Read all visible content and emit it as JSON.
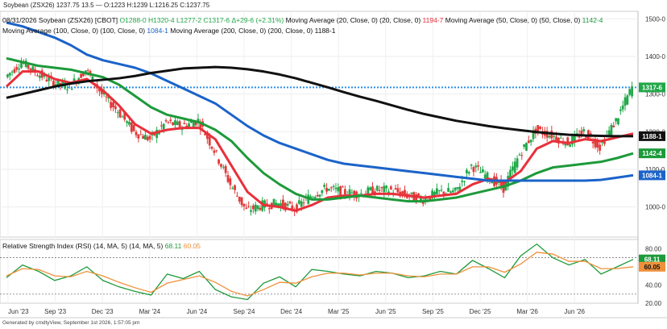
{
  "window_title": "Soybean (ZSX26) 1237.75 13.5 — O:1223 H:1239 L:1216.25 C:1237.75",
  "footer": "Generated by cmdtyView, September 1st 2026, 1:57:05 pm",
  "colors": {
    "candle_up": "#22a84a",
    "candle_down": "#e23a3a",
    "ma20": "#e8303a",
    "ma50": "#1d9a3a",
    "ma100": "#1b63c9",
    "ma200": "#111111",
    "price_line": "#2a8fe8",
    "rsi": "#1d9a3a",
    "rsi_ma": "#f0903a",
    "rsi_extreme": "#2244dd"
  },
  "legend": {
    "line1": [
      {
        "text": "08/31/2026 Soybean (ZSX26) [CBOT]",
        "color": "#111111"
      },
      {
        "text": " O1288-0",
        "color": "#22a84a"
      },
      {
        "text": " H1320-4",
        "color": "#22a84a"
      },
      {
        "text": " L1277-2",
        "color": "#22a84a"
      },
      {
        "text": " C1317-6",
        "color": "#22a84a"
      },
      {
        "text": " Δ+29-6 (+2.31%)",
        "color": "#22a84a"
      },
      {
        "text": " Moving Average (20, Close, 0) (20, Close, 0)",
        "color": "#111111"
      },
      {
        "text": " 1194-7",
        "color": "#e8303a"
      },
      {
        "text": " Moving Average (50, Close, 0) (50, Close, 0)",
        "color": "#111111"
      },
      {
        "text": " 1142-4",
        "color": "#1d9a3a"
      }
    ],
    "line2": [
      {
        "text": "Moving Average (100, Close, 0) (100, Close, 0)",
        "color": "#111111"
      },
      {
        "text": " 1084-1",
        "color": "#1b63c9"
      },
      {
        "text": " Moving Average (200, Close, 0) (200, Close, 0)",
        "color": "#111111"
      },
      {
        "text": " 1188-1",
        "color": "#111111"
      }
    ]
  },
  "rsi_legend": [
    {
      "text": "Relative Strength Index (RSI) (14, MA, 5) (14, MA, 5)",
      "color": "#111111"
    },
    {
      "text": " 68.11",
      "color": "#1d9a3a"
    },
    {
      "text": " 60.05",
      "color": "#f0903a"
    }
  ],
  "price_axis": {
    "ticks": [
      "1500-0",
      "1400-0",
      "1300-0",
      "1200-0",
      "1100-0",
      "1000-0"
    ]
  },
  "rsi_axis": {
    "ticks": [
      "80.00",
      "40.00",
      "20.00"
    ]
  },
  "price_badges": [
    {
      "text": "1317-6",
      "value": 1317.75,
      "color": "#22a84a"
    },
    {
      "text": "1188-1",
      "value": 1188.125,
      "color": "#111111"
    },
    {
      "text": "1142-4",
      "value": 1142.5,
      "color": "#1d9a3a"
    },
    {
      "text": "1084-1",
      "value": 1084.125,
      "color": "#1b63c9"
    }
  ],
  "rsi_badges": [
    {
      "text": "68.11",
      "value": 68.11,
      "color": "#1d9a3a",
      "text_color": "#ffffff"
    },
    {
      "text": "60.05",
      "value": 60.05,
      "color": "#f0903a",
      "text_color": "#111111"
    }
  ],
  "x_labels": [
    "Jun '23",
    "Sep '23",
    "Dec '23",
    "Mar '24",
    "Jun '24",
    "Sep '24",
    "Dec '24",
    "Mar '25",
    "Jun '25",
    "Sep '25",
    "Dec '25",
    "Mar '26",
    "Jun '26"
  ],
  "chart_data": [
    {
      "type": "line",
      "title": "08/31/2026 Soybean (ZSX26) [CBOT]",
      "xlabel": "",
      "ylabel": "",
      "ylim": [
        920,
        1520
      ],
      "x": [
        "Jun '23",
        "Jul '23",
        "Aug '23",
        "Sep '23",
        "Oct '23",
        "Nov '23",
        "Dec '23",
        "Jan '24",
        "Feb '24",
        "Mar '24",
        "Apr '24",
        "May '24",
        "Jun '24",
        "Jul '24",
        "Aug '24",
        "Sep '24",
        "Oct '24",
        "Nov '24",
        "Dec '24",
        "Jan '25",
        "Feb '25",
        "Mar '25",
        "Apr '25",
        "May '25",
        "Jun '25",
        "Jul '25",
        "Aug '25",
        "Sep '25",
        "Oct '25",
        "Nov '25",
        "Dec '25",
        "Jan '26",
        "Feb '26",
        "Mar '26",
        "Apr '26",
        "May '26",
        "Jun '26",
        "Jul '26",
        "Aug '26",
        "Aug 31 '26"
      ],
      "close_reference": 1317.75,
      "series": [
        {
          "name": "Close",
          "values": [
            1345,
            1385,
            1355,
            1330,
            1320,
            1365,
            1300,
            1255,
            1200,
            1180,
            1225,
            1215,
            1230,
            1150,
            1060,
            990,
            1005,
            1010,
            995,
            1030,
            1050,
            1040,
            1035,
            1045,
            1045,
            1030,
            1020,
            1040,
            1040,
            1110,
            1080,
            1050,
            1140,
            1205,
            1190,
            1170,
            1200,
            1160,
            1230,
            1317.75
          ]
        },
        {
          "name": "Moving Average (20, Close, 0)",
          "values": [
            1320,
            1360,
            1360,
            1340,
            1330,
            1340,
            1310,
            1270,
            1220,
            1195,
            1205,
            1210,
            1210,
            1180,
            1110,
            1040,
            1005,
            1000,
            990,
            1005,
            1025,
            1030,
            1030,
            1035,
            1035,
            1030,
            1025,
            1030,
            1035,
            1060,
            1075,
            1065,
            1095,
            1155,
            1175,
            1170,
            1180,
            1175,
            1185,
            1195
          ]
        },
        {
          "name": "Moving Average (50, Close, 0)",
          "values": [
            1395,
            1385,
            1375,
            1370,
            1365,
            1355,
            1345,
            1325,
            1295,
            1265,
            1245,
            1235,
            1225,
            1205,
            1175,
            1130,
            1090,
            1060,
            1035,
            1020,
            1020,
            1025,
            1030,
            1025,
            1020,
            1015,
            1015,
            1020,
            1025,
            1035,
            1045,
            1055,
            1070,
            1090,
            1105,
            1110,
            1115,
            1120,
            1130,
            1142.5
          ]
        },
        {
          "name": "Moving Average (100, Close, 0)",
          "values": [
            1490,
            1480,
            1465,
            1450,
            1430,
            1405,
            1390,
            1380,
            1370,
            1355,
            1335,
            1315,
            1295,
            1275,
            1245,
            1215,
            1190,
            1170,
            1155,
            1140,
            1125,
            1115,
            1110,
            1105,
            1100,
            1095,
            1090,
            1085,
            1080,
            1075,
            1070,
            1070,
            1070,
            1070,
            1070,
            1070,
            1070,
            1072,
            1078,
            1084.125
          ]
        },
        {
          "name": "Moving Average (200, Close, 0)",
          "values": [
            1290,
            1300,
            1310,
            1320,
            1328,
            1334,
            1338,
            1342,
            1348,
            1356,
            1362,
            1368,
            1370,
            1372,
            1370,
            1366,
            1360,
            1352,
            1342,
            1330,
            1318,
            1305,
            1293,
            1282,
            1270,
            1258,
            1247,
            1238,
            1229,
            1222,
            1215,
            1209,
            1204,
            1199,
            1195,
            1192,
            1190,
            1189,
            1188,
            1188.125
          ]
        }
      ]
    },
    {
      "type": "line",
      "title": "Relative Strength Index (RSI) (14, MA, 5) (14, MA, 5)",
      "xlabel": "",
      "ylabel": "",
      "ylim": [
        20,
        90
      ],
      "x": [
        "Jun '23",
        "Jul '23",
        "Aug '23",
        "Sep '23",
        "Oct '23",
        "Nov '23",
        "Dec '23",
        "Jan '24",
        "Feb '24",
        "Mar '24",
        "Apr '24",
        "May '24",
        "Jun '24",
        "Jul '24",
        "Aug '24",
        "Sep '24",
        "Oct '24",
        "Nov '24",
        "Dec '24",
        "Jan '25",
        "Feb '25",
        "Mar '25",
        "Apr '25",
        "May '25",
        "Jun '25",
        "Jul '25",
        "Aug '25",
        "Sep '25",
        "Oct '25",
        "Nov '25",
        "Dec '25",
        "Jan '26",
        "Feb '26",
        "Mar '26",
        "Apr '26",
        "May '26",
        "Jun '26",
        "Jul '26",
        "Aug '26",
        "Aug 31 '26"
      ],
      "series": [
        {
          "name": "RSI",
          "values": [
            48,
            62,
            55,
            45,
            50,
            60,
            45,
            38,
            33,
            29,
            52,
            47,
            55,
            35,
            27,
            24,
            42,
            49,
            38,
            57,
            55,
            52,
            50,
            55,
            53,
            48,
            50,
            55,
            52,
            67,
            58,
            48,
            72,
            85,
            70,
            62,
            68,
            52,
            60,
            68.11
          ]
        },
        {
          "name": "MA",
          "values": [
            50,
            58,
            57,
            50,
            49,
            55,
            50,
            43,
            37,
            32,
            42,
            46,
            50,
            43,
            33,
            28,
            35,
            43,
            42,
            49,
            53,
            53,
            51,
            53,
            53,
            50,
            49,
            52,
            52,
            60,
            60,
            54,
            63,
            76,
            74,
            66,
            66,
            58,
            58,
            60.05
          ]
        }
      ]
    }
  ]
}
